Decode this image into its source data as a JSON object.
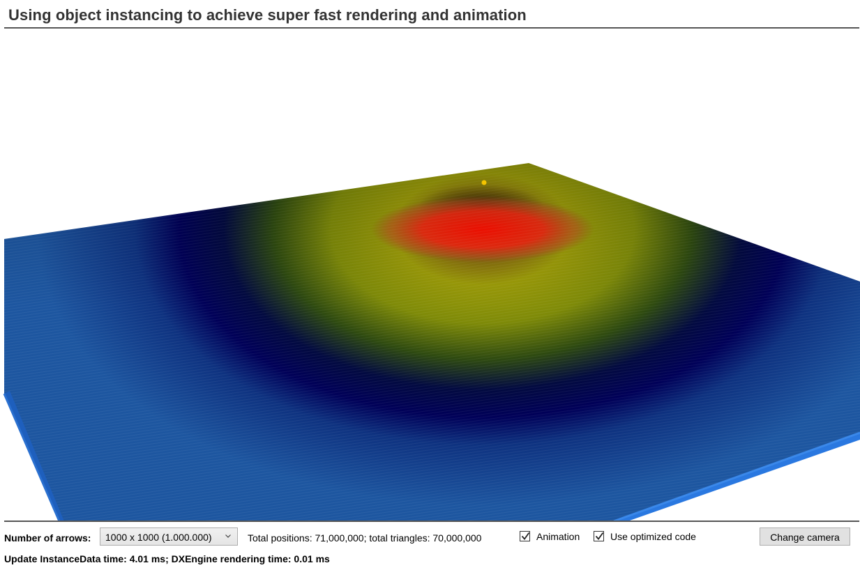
{
  "title": "Using object instancing to achieve super fast rendering and animation",
  "controls": {
    "arrows_label": "Number of arrows:",
    "arrows_selected": "1000 x 1000 (1.000.000)",
    "totals_text": "Total positions: 71,000,000; total triangles: 70,000,000",
    "animation_label": "Animation",
    "animation_checked": true,
    "optimized_label": "Use optimized code",
    "optimized_checked": true,
    "change_camera_label": "Change camera"
  },
  "status": {
    "text": "Update InstanceData time: 4.01 ms;  DXEngine rendering time: 0.01 ms"
  },
  "colors": {
    "surface_peak": "#ff1a0a",
    "surface_mid": "#a0a000",
    "surface_low": "#000060",
    "surface_base": "#1a4f95",
    "edge": "#1e6ad2",
    "marker": "#f5c400"
  }
}
